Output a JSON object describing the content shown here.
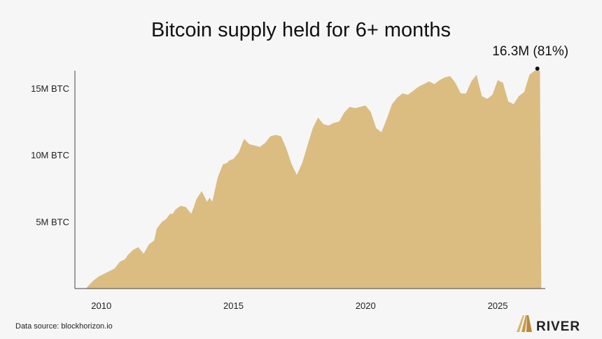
{
  "chart_data": {
    "type": "area",
    "title": "Bitcoin supply held for 6+ months",
    "xlabel": "",
    "ylabel": "",
    "x_ticks": [
      {
        "value": 2010,
        "label": "2010"
      },
      {
        "value": 2015,
        "label": "2015"
      },
      {
        "value": 2020,
        "label": "2020"
      },
      {
        "value": 2025,
        "label": "2025"
      }
    ],
    "y_ticks": [
      {
        "value": 5,
        "label": "5M BTC"
      },
      {
        "value": 10,
        "label": "10M BTC"
      },
      {
        "value": 15,
        "label": "15M BTC"
      }
    ],
    "xlim": [
      2009.0,
      2026.8
    ],
    "ylim": [
      0,
      16.3
    ],
    "grid": false,
    "color": "#dbbd82",
    "annotation": {
      "text": "16.3M (81%)",
      "x": 2026.5,
      "y": 16.3
    },
    "series": [
      {
        "x": [
          2009.0,
          2009.42,
          2009.5,
          2009.7,
          2009.9,
          2010.1,
          2010.3,
          2010.5,
          2010.7,
          2010.9,
          2011.0,
          2011.2,
          2011.4,
          2011.6,
          2011.8,
          2012.0,
          2012.1,
          2012.3,
          2012.45,
          2012.6,
          2012.7,
          2012.8,
          2013.0,
          2013.2,
          2013.4,
          2013.5,
          2013.6,
          2013.8,
          2014.0,
          2014.1,
          2014.2,
          2014.4,
          2014.6,
          2014.75,
          2014.85,
          2015.0,
          2015.2,
          2015.4,
          2015.6,
          2015.8,
          2016.0,
          2016.2,
          2016.4,
          2016.6,
          2016.8,
          2017.0,
          2017.2,
          2017.4,
          2017.6,
          2017.8,
          2018.0,
          2018.2,
          2018.4,
          2018.6,
          2018.8,
          2019.0,
          2019.2,
          2019.4,
          2019.6,
          2019.8,
          2020.0,
          2020.2,
          2020.4,
          2020.6,
          2020.8,
          2021.0,
          2021.2,
          2021.4,
          2021.6,
          2021.8,
          2022.0,
          2022.2,
          2022.4,
          2022.6,
          2022.8,
          2023.0,
          2023.2,
          2023.4,
          2023.6,
          2023.8,
          2024.0,
          2024.2,
          2024.4,
          2024.6,
          2024.8,
          2025.0,
          2025.2,
          2025.4,
          2025.6,
          2025.8,
          2026.0,
          2026.2,
          2026.4,
          2026.5,
          2026.6,
          2026.65,
          2026.8
        ],
        "y": [
          0,
          0,
          0.2,
          0.6,
          0.9,
          1.1,
          1.3,
          1.5,
          2.0,
          2.2,
          2.5,
          2.9,
          3.1,
          2.6,
          3.3,
          3.6,
          4.5,
          5.0,
          5.2,
          5.6,
          5.6,
          5.9,
          6.2,
          6.1,
          5.6,
          6.1,
          6.7,
          7.3,
          6.5,
          6.8,
          6.5,
          8.3,
          9.3,
          9.4,
          9.6,
          9.7,
          10.2,
          11.2,
          10.8,
          10.7,
          10.6,
          10.9,
          11.4,
          11.5,
          11.4,
          10.5,
          9.3,
          8.5,
          9.4,
          10.7,
          12.0,
          12.8,
          12.3,
          12.2,
          12.4,
          12.5,
          13.2,
          13.6,
          13.5,
          13.6,
          13.7,
          13.2,
          12.0,
          11.7,
          12.7,
          13.8,
          14.3,
          14.6,
          14.5,
          14.8,
          15.1,
          15.3,
          15.5,
          15.3,
          15.6,
          15.8,
          15.9,
          15.4,
          14.6,
          14.6,
          15.5,
          16.0,
          14.4,
          14.2,
          14.5,
          15.6,
          15.4,
          14.0,
          13.8,
          14.4,
          14.7,
          16.0,
          16.3,
          16.3,
          16.3,
          0,
          0
        ]
      }
    ]
  },
  "source_text": "Data source: blockhorizon.io",
  "brand": {
    "name": "RIVER"
  }
}
